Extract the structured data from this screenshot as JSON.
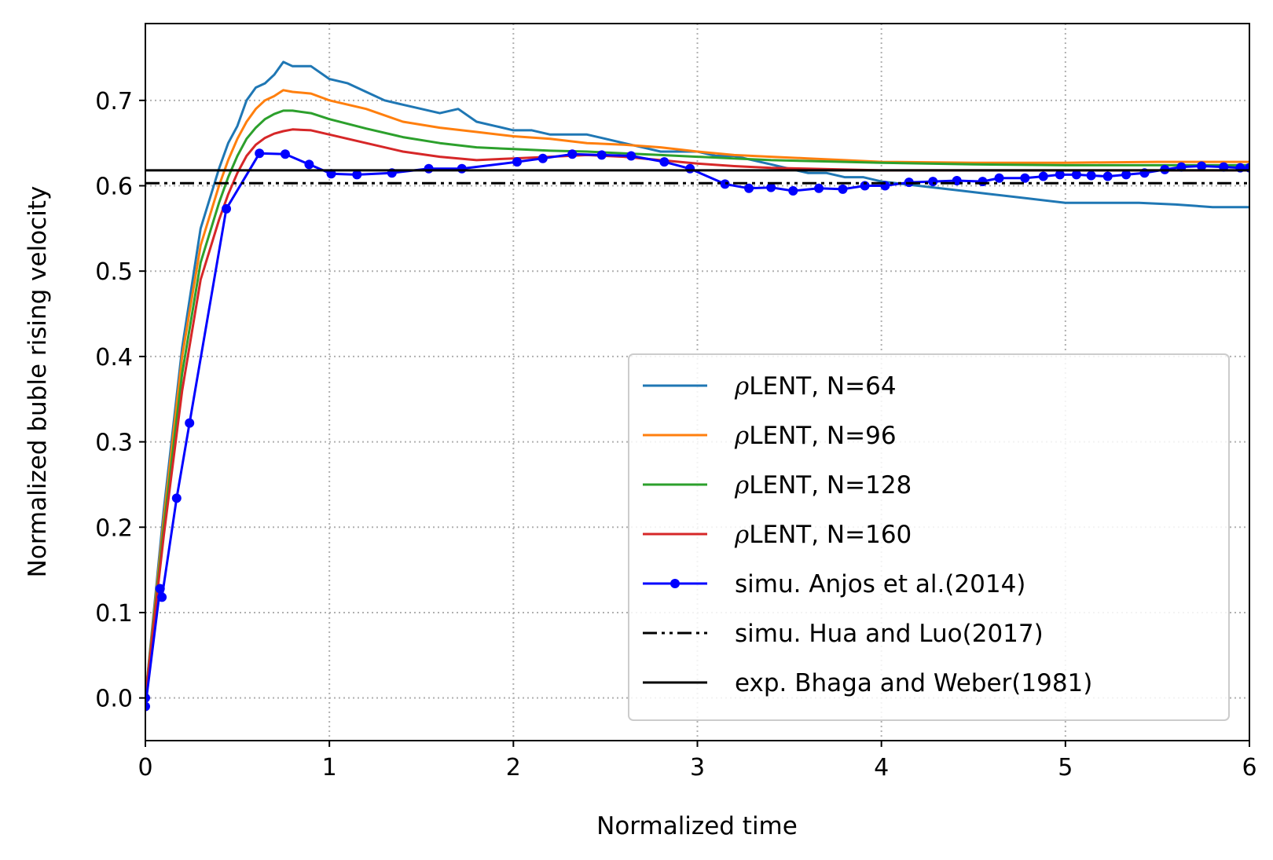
{
  "chart_data": {
    "type": "line",
    "xlabel": "Normalized time",
    "ylabel": "Normalized buble rising velocity",
    "xlim": [
      0,
      6
    ],
    "ylim": [
      -0.05,
      0.79
    ],
    "xticks": [
      0,
      1,
      2,
      3,
      4,
      5,
      6
    ],
    "xtick_labels": [
      "0",
      "1",
      "2",
      "3",
      "4",
      "5",
      "6"
    ],
    "yticks": [
      0.0,
      0.1,
      0.2,
      0.3,
      0.4,
      0.5,
      0.6,
      0.7
    ],
    "ytick_labels": [
      "0.0",
      "0.1",
      "0.2",
      "0.3",
      "0.4",
      "0.5",
      "0.6",
      "0.7"
    ],
    "grid": true,
    "legend_position": "lower-right",
    "series": [
      {
        "name": "LENT, N=64",
        "legend_prefix": "ρ",
        "color": "#1f77b4",
        "style": "solid",
        "x": [
          0,
          0.1,
          0.2,
          0.3,
          0.4,
          0.45,
          0.5,
          0.55,
          0.6,
          0.65,
          0.7,
          0.75,
          0.8,
          0.9,
          1.0,
          1.1,
          1.2,
          1.3,
          1.4,
          1.5,
          1.6,
          1.7,
          1.8,
          1.9,
          2.0,
          2.1,
          2.2,
          2.3,
          2.4,
          2.5,
          2.6,
          2.7,
          2.8,
          2.9,
          3.0,
          3.1,
          3.2,
          3.3,
          3.4,
          3.5,
          3.6,
          3.7,
          3.8,
          3.9,
          4.0,
          4.2,
          4.4,
          4.6,
          4.8,
          5.0,
          5.2,
          5.4,
          5.6,
          5.8,
          6.0
        ],
        "y": [
          0.0,
          0.22,
          0.41,
          0.55,
          0.62,
          0.65,
          0.67,
          0.7,
          0.715,
          0.72,
          0.73,
          0.745,
          0.74,
          0.74,
          0.725,
          0.72,
          0.71,
          0.7,
          0.695,
          0.69,
          0.685,
          0.69,
          0.675,
          0.67,
          0.665,
          0.665,
          0.66,
          0.66,
          0.66,
          0.655,
          0.65,
          0.645,
          0.64,
          0.64,
          0.64,
          0.635,
          0.635,
          0.63,
          0.625,
          0.62,
          0.615,
          0.615,
          0.61,
          0.61,
          0.605,
          0.6,
          0.595,
          0.59,
          0.585,
          0.58,
          0.58,
          0.58,
          0.578,
          0.575,
          0.575
        ]
      },
      {
        "name": "LENT, N=96",
        "legend_prefix": "ρ",
        "color": "#ff7f0e",
        "style": "solid",
        "x": [
          0,
          0.1,
          0.2,
          0.3,
          0.4,
          0.45,
          0.5,
          0.55,
          0.6,
          0.65,
          0.7,
          0.75,
          0.8,
          0.9,
          1.0,
          1.2,
          1.4,
          1.6,
          1.8,
          2.0,
          2.2,
          2.4,
          2.6,
          2.8,
          3.0,
          3.2,
          3.4,
          3.6,
          3.8,
          4.0,
          4.5,
          5.0,
          5.5,
          6.0
        ],
        "y": [
          0.0,
          0.21,
          0.4,
          0.53,
          0.6,
          0.63,
          0.655,
          0.675,
          0.69,
          0.7,
          0.705,
          0.712,
          0.71,
          0.708,
          0.7,
          0.69,
          0.675,
          0.668,
          0.663,
          0.658,
          0.655,
          0.65,
          0.648,
          0.645,
          0.64,
          0.636,
          0.634,
          0.632,
          0.63,
          0.628,
          0.627,
          0.627,
          0.628,
          0.628
        ]
      },
      {
        "name": "LENT, N=128",
        "legend_prefix": "ρ",
        "color": "#2ca02c",
        "style": "solid",
        "x": [
          0,
          0.1,
          0.2,
          0.3,
          0.4,
          0.45,
          0.5,
          0.55,
          0.6,
          0.65,
          0.7,
          0.75,
          0.8,
          0.9,
          1.0,
          1.2,
          1.4,
          1.6,
          1.8,
          2.0,
          2.2,
          2.4,
          2.6,
          2.8,
          3.0,
          3.2,
          3.4,
          3.6,
          3.8,
          4.0,
          4.5,
          5.0,
          5.5,
          6.0
        ],
        "y": [
          0.0,
          0.2,
          0.38,
          0.51,
          0.58,
          0.61,
          0.635,
          0.655,
          0.668,
          0.678,
          0.684,
          0.688,
          0.688,
          0.685,
          0.678,
          0.667,
          0.657,
          0.65,
          0.645,
          0.643,
          0.641,
          0.64,
          0.638,
          0.636,
          0.634,
          0.632,
          0.63,
          0.629,
          0.628,
          0.627,
          0.625,
          0.624,
          0.624,
          0.624
        ]
      },
      {
        "name": "LENT, N=160",
        "legend_prefix": "ρ",
        "color": "#d62728",
        "style": "solid",
        "x": [
          0,
          0.1,
          0.2,
          0.3,
          0.4,
          0.45,
          0.5,
          0.55,
          0.6,
          0.65,
          0.7,
          0.75,
          0.8,
          0.9,
          1.0,
          1.2,
          1.4,
          1.6,
          1.8,
          2.0,
          2.2,
          2.4,
          2.6,
          2.8,
          3.0,
          3.2,
          3.4,
          3.6,
          3.8,
          4.0,
          4.5,
          5.0,
          5.5,
          6.0
        ],
        "y": [
          0.0,
          0.19,
          0.36,
          0.49,
          0.56,
          0.59,
          0.615,
          0.635,
          0.648,
          0.656,
          0.661,
          0.664,
          0.666,
          0.665,
          0.66,
          0.65,
          0.64,
          0.634,
          0.63,
          0.632,
          0.634,
          0.636,
          0.634,
          0.63,
          0.626,
          0.623,
          0.621,
          0.62,
          0.619,
          0.618,
          0.618,
          0.618,
          0.618,
          0.618
        ]
      },
      {
        "name": "simu. Anjos et al.(2014)",
        "color": "#0000ff",
        "style": "solid",
        "marker": "circle",
        "x": [
          0,
          0.0,
          0.08,
          0.09,
          0.17,
          0.24,
          0.44,
          0.62,
          0.76,
          0.89,
          1.01,
          1.15,
          1.34,
          1.54,
          1.72,
          2.02,
          2.16,
          2.32,
          2.48,
          2.64,
          2.82,
          2.96,
          3.15,
          3.28,
          3.4,
          3.52,
          3.66,
          3.79,
          3.91,
          4.02,
          4.15,
          4.28,
          4.41,
          4.55,
          4.64,
          4.78,
          4.88,
          4.97,
          5.06,
          5.14,
          5.23,
          5.33,
          5.43,
          5.54,
          5.63,
          5.74,
          5.86,
          5.95,
          6.0
        ],
        "y": [
          0.0,
          -0.01,
          0.128,
          0.118,
          0.234,
          0.322,
          0.573,
          0.638,
          0.637,
          0.625,
          0.614,
          0.613,
          0.615,
          0.62,
          0.62,
          0.628,
          0.632,
          0.637,
          0.636,
          0.635,
          0.628,
          0.62,
          0.602,
          0.597,
          0.598,
          0.594,
          0.597,
          0.596,
          0.6,
          0.6,
          0.604,
          0.605,
          0.606,
          0.605,
          0.609,
          0.609,
          0.611,
          0.613,
          0.613,
          0.612,
          0.611,
          0.613,
          0.615,
          0.619,
          0.622,
          0.623,
          0.622,
          0.621,
          0.621
        ]
      },
      {
        "name": "simu. Hua and Luo(2017)",
        "color": "#000000",
        "style": "dashdotdot",
        "x": [
          0,
          6
        ],
        "y": [
          0.603,
          0.603
        ]
      },
      {
        "name": "exp. Bhaga and Weber(1981)",
        "color": "#000000",
        "style": "solid",
        "x": [
          0,
          6
        ],
        "y": [
          0.618,
          0.618
        ]
      }
    ]
  }
}
